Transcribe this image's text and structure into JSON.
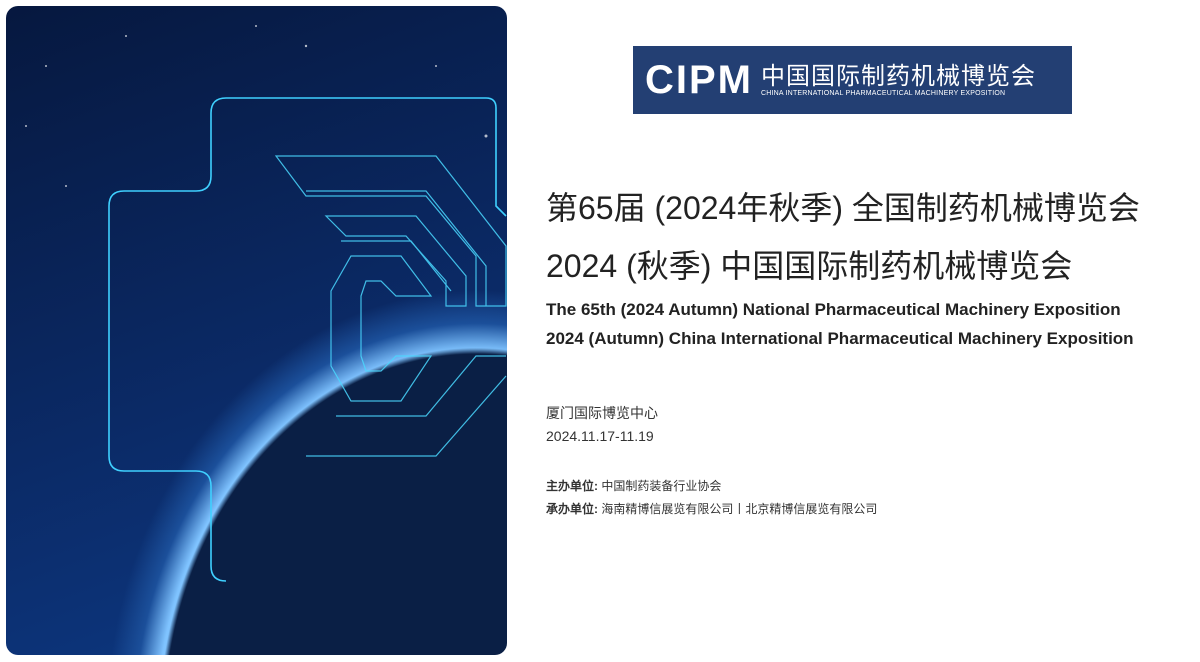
{
  "hero": {
    "image": "earth-from-space-with-cyan-circuit-c-logo"
  },
  "logo": {
    "mark": "CIPM",
    "cn": "中国国际制药机械博览会",
    "en": "CHINA INTERNATIONAL PHARMACEUTICAL MACHINERY EXPOSITION",
    "bg": "#233f73"
  },
  "title": {
    "cn1": "第65届 (2024年秋季) 全国制药机械博览会",
    "cn2": "2024 (秋季) 中国国际制药机械博览会",
    "en1": "The 65th (2024 Autumn) National Pharmaceutical Machinery Exposition",
    "en2": "2024 (Autumn) China International Pharmaceutical Machinery Exposition"
  },
  "venue": "厦门国际博览中心",
  "dates": "2024.11.17-11.19",
  "organizers": {
    "host_label": "主办单位:",
    "host": "中国制药装备行业协会",
    "org_label": "承办单位:",
    "org": "海南精博信展览有限公司丨北京精博信展览有限公司"
  }
}
